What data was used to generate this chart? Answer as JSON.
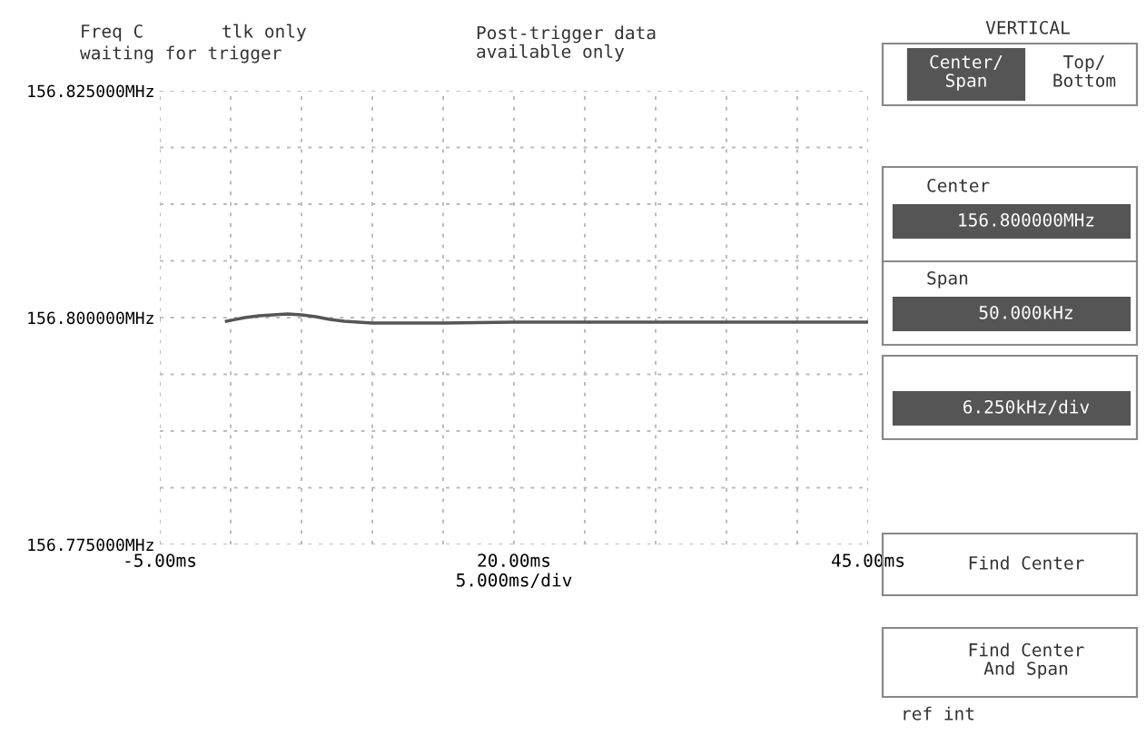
{
  "chart_data": {
    "type": "line",
    "xlabel": "5.000ms/div",
    "x": [
      -0.3,
      1,
      2,
      3,
      4,
      5,
      6,
      7,
      8,
      10,
      12,
      15,
      20,
      25,
      30,
      35,
      40,
      45
    ],
    "series": [
      {
        "color": "#555555",
        "values": [
          156.7996,
          156.8,
          156.8002,
          156.8003,
          156.8004,
          156.8003,
          156.8001,
          156.7998,
          156.7996,
          156.7994,
          156.7994,
          156.7994,
          156.7995,
          156.7995,
          156.7995,
          156.7995,
          156.7995,
          156.7995
        ]
      }
    ],
    "xlim": [
      -5,
      45
    ],
    "ylim": [
      156.775,
      156.825
    ],
    "xticks": [
      {
        "value": -5,
        "label": "-5.00ms"
      },
      {
        "value": 0,
        "label": null
      },
      {
        "value": 5,
        "label": null
      },
      {
        "value": 10,
        "label": null
      },
      {
        "value": 15,
        "label": null
      },
      {
        "value": 20,
        "label": "20.00ms"
      },
      {
        "value": 25,
        "label": null
      },
      {
        "value": 30,
        "label": null
      },
      {
        "value": 35,
        "label": null
      },
      {
        "value": 40,
        "label": null
      },
      {
        "value": 45,
        "label": "45.00ms"
      }
    ],
    "yticks": [
      {
        "value": 156.775,
        "label": "156.775000MHz"
      },
      {
        "value": 156.78125,
        "label": null
      },
      {
        "value": 156.7875,
        "label": null
      },
      {
        "value": 156.79375,
        "label": null
      },
      {
        "value": 156.8,
        "label": "156.800000MHz"
      },
      {
        "value": 156.80625,
        "label": null
      },
      {
        "value": 156.8125,
        "label": null
      },
      {
        "value": 156.81875,
        "label": null
      },
      {
        "value": 156.825,
        "label": "156.825000MHz"
      }
    ],
    "grid": true,
    "line_style": "solid",
    "marker": "none",
    "annotations": [
      "Freq C",
      "tlk only",
      "waiting for trigger",
      "Post-trigger data\navailable only",
      "VERTICAL",
      "Center/\nSpan",
      "Top/\nBottom",
      "Center",
      "156.800000MHz",
      "Span",
      "50.000kHz",
      "6.250kHz/div",
      "Find Center",
      "Find Center\nAnd Span",
      "ref int"
    ]
  }
}
